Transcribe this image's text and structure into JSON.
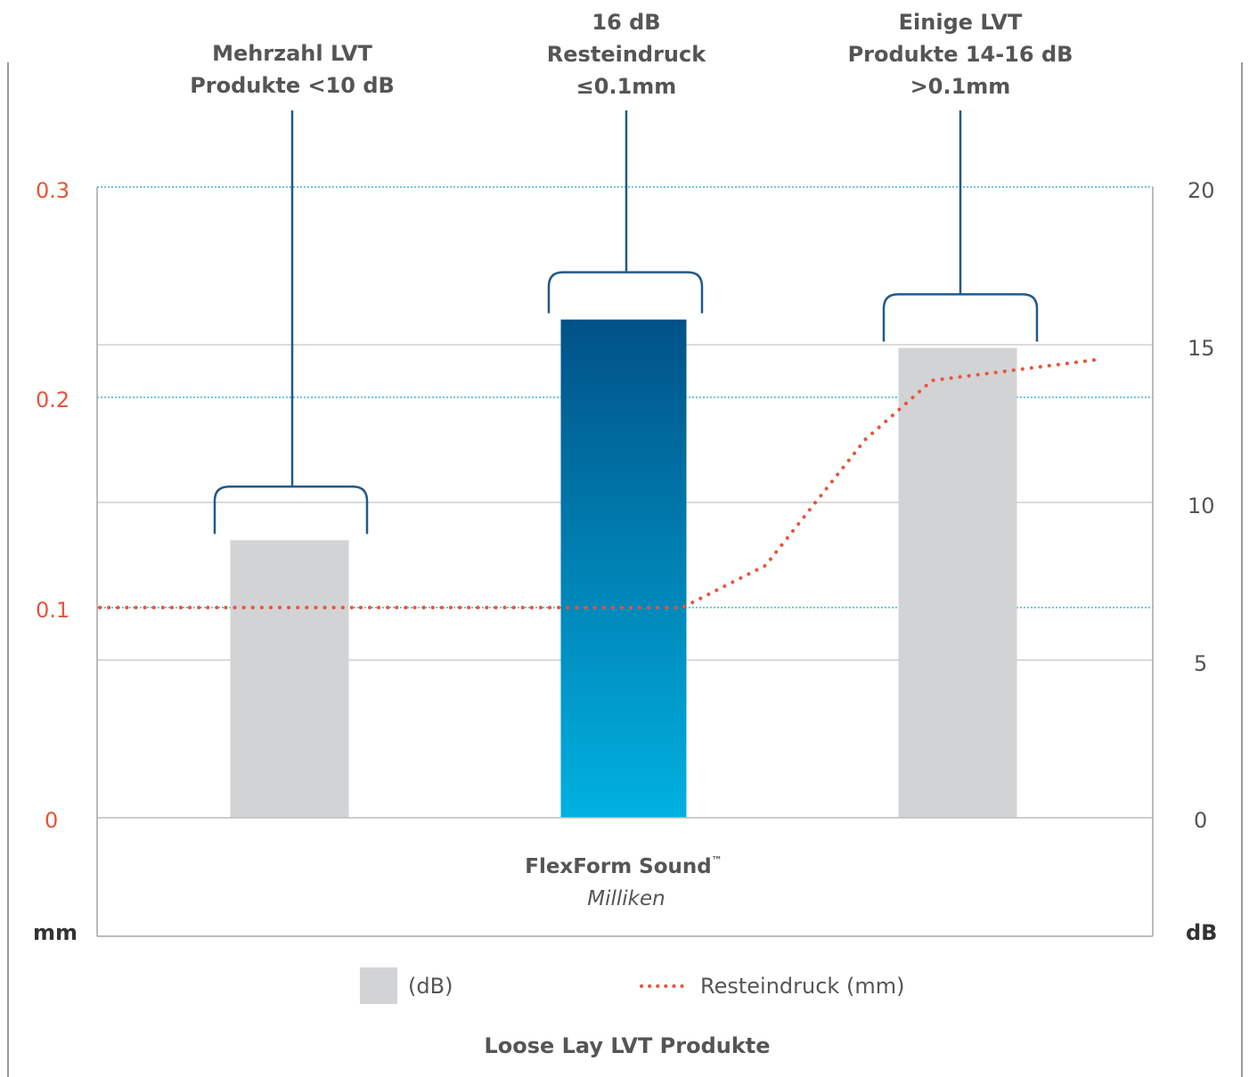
{
  "chart_data": {
    "type": "bar",
    "categories": [
      "Mehrzahl LVT Produkte <10 dB",
      "FlexForm Sound™ Milliken",
      "Einige LVT Produkte 14-16 dB"
    ],
    "series": [
      {
        "name": "(dB)",
        "axis": "right",
        "values": [
          8.8,
          15.8,
          14.9
        ],
        "colors": [
          "#d2d3d5",
          "gradient-blue",
          "#d2d3d5"
        ]
      },
      {
        "name": "Resteindruck (mm)",
        "axis": "left",
        "type": "line",
        "style": "dotted",
        "color": "#e8543a",
        "x": [
          0,
          1.5,
          1.75,
          2.0,
          2.3,
          2.5,
          3.0
        ],
        "y": [
          0.1,
          0.1,
          0.1,
          0.12,
          0.18,
          0.208,
          0.218
        ]
      }
    ],
    "product_name": "FlexForm Sound",
    "product_tm": "™",
    "product_maker": "Milliken",
    "annotations": [
      {
        "lines": [
          "Mehrzahl LVT",
          "Produkte <10 dB"
        ]
      },
      {
        "lines": [
          "16 dB",
          "Resteindruck",
          "≤0.1mm"
        ]
      },
      {
        "lines": [
          "Einige LVT",
          "Produkte 14-16 dB",
          ">0.1mm"
        ]
      }
    ],
    "y_left": {
      "label": "mm",
      "ticks": [
        "0.3",
        "0.2",
        "0.1",
        "0"
      ],
      "ylim": [
        0,
        0.3
      ]
    },
    "y_right": {
      "label": "dB",
      "ticks": [
        "20",
        "15",
        "10",
        "5",
        "0"
      ],
      "ylim": [
        0,
        20
      ]
    },
    "legend": [
      {
        "label": "(dB)",
        "symbol": "gray-box"
      },
      {
        "label": "Resteindruck (mm)",
        "symbol": "dotted-line"
      }
    ],
    "footer": "Loose Lay LVT Produkte",
    "colors": {
      "accent": "#e8543a",
      "bar_gray": "#d2d3d5",
      "bracket": "#1f5a8a",
      "gradient_top": "#005288",
      "gradient_bottom": "#00b1e0",
      "grid_blue": "#44b3d7",
      "grid_gray": "#cfcfcf"
    }
  }
}
